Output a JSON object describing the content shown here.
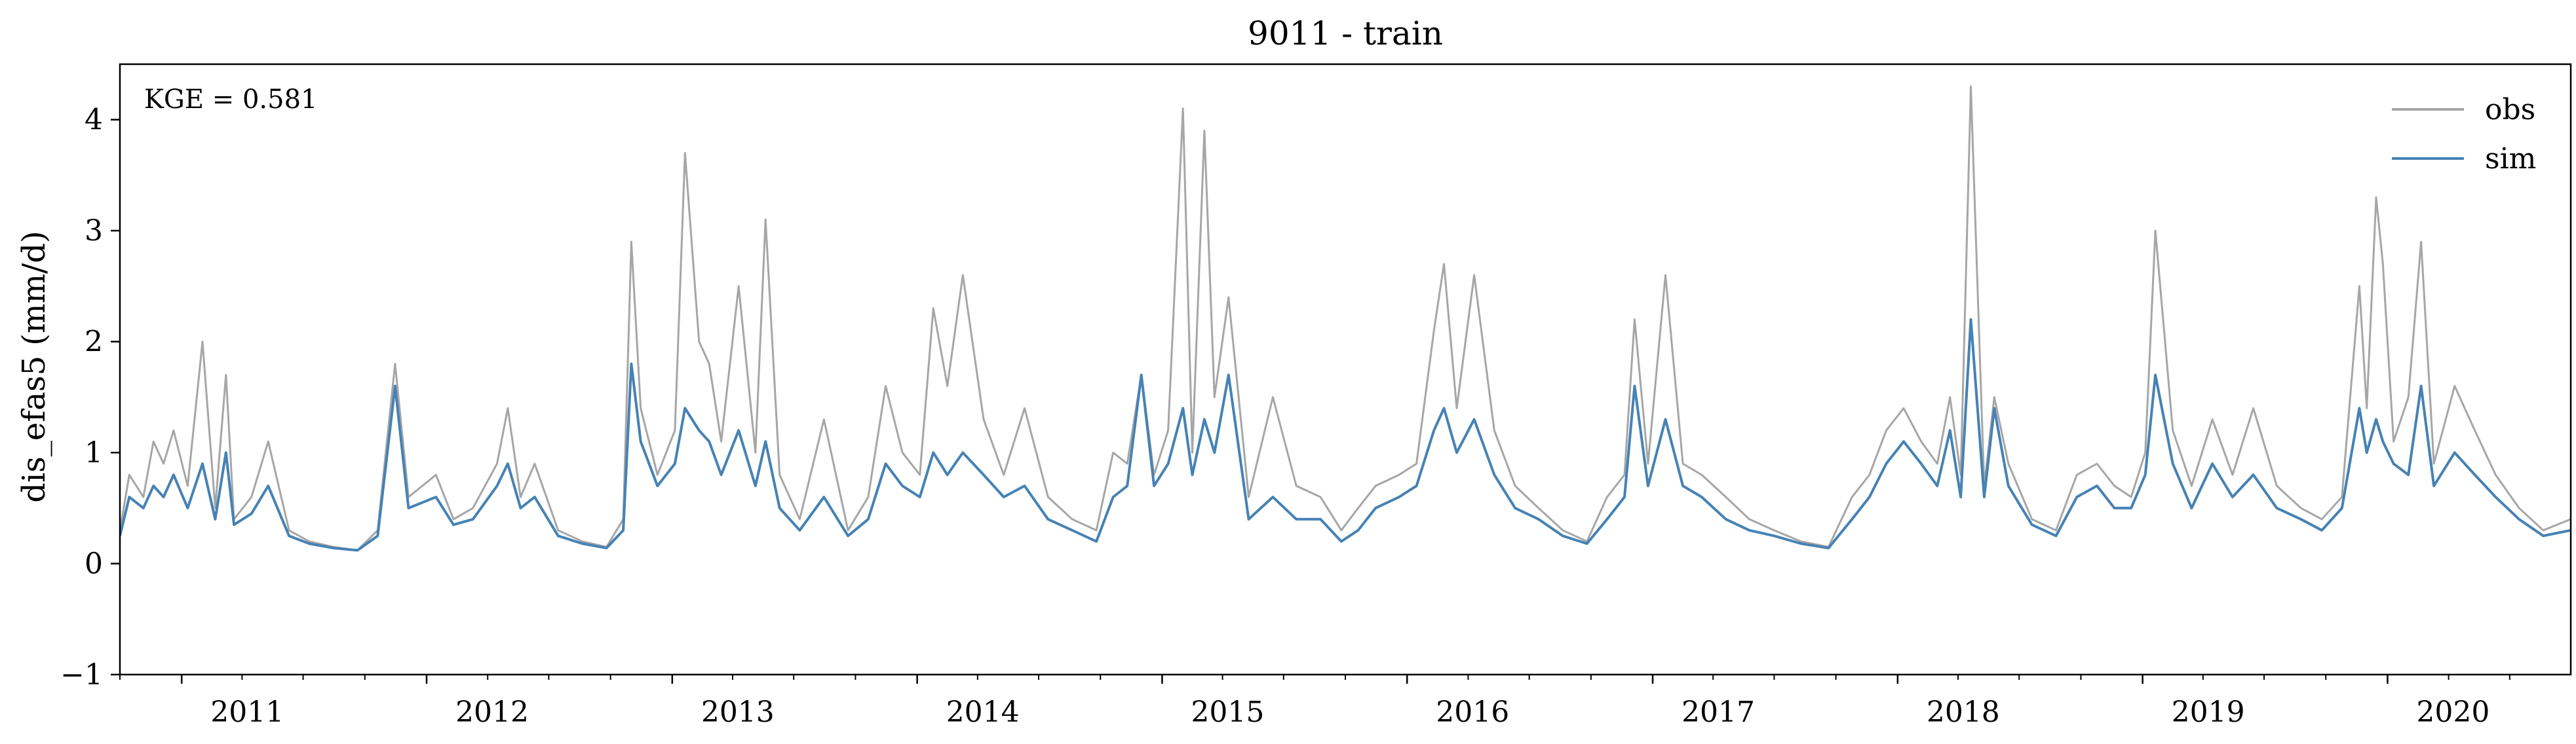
{
  "chart_data": {
    "type": "line",
    "title": "9011 - train",
    "xlabel": "",
    "ylabel": "dis_efas5 (mm/d)",
    "x_range": [
      "2010-10-01",
      "2020-09-30"
    ],
    "ylim": [
      -1,
      4.5
    ],
    "y_ticks": [
      -1,
      0,
      1,
      2,
      3,
      4
    ],
    "y_tick_labels": [
      "−1",
      "0",
      "1",
      "2",
      "3",
      "4"
    ],
    "x_ticks": [
      {
        "date": "2011-01-01",
        "label": "2011"
      },
      {
        "date": "2012-01-01",
        "label": "2012"
      },
      {
        "date": "2013-01-01",
        "label": "2013"
      },
      {
        "date": "2014-01-01",
        "label": "2014"
      },
      {
        "date": "2015-01-01",
        "label": "2015"
      },
      {
        "date": "2016-01-01",
        "label": "2016"
      },
      {
        "date": "2017-01-01",
        "label": "2017"
      },
      {
        "date": "2018-01-01",
        "label": "2018"
      },
      {
        "date": "2019-01-01",
        "label": "2019"
      },
      {
        "date": "2020-01-01",
        "label": "2020"
      }
    ],
    "annotation": "KGE = 0.581",
    "grid": false,
    "legend_position": "top-right",
    "series": [
      {
        "name": "obs",
        "color": "#a6a6a6",
        "x": [
          "2010-10-01",
          "2010-10-15",
          "2010-11-05",
          "2010-11-20",
          "2010-12-05",
          "2010-12-20",
          "2011-01-10",
          "2011-02-01",
          "2011-02-20",
          "2011-03-08",
          "2011-03-20",
          "2011-04-15",
          "2011-05-10",
          "2011-06-10",
          "2011-07-10",
          "2011-08-15",
          "2011-09-20",
          "2011-10-20",
          "2011-11-15",
          "2011-12-05",
          "2012-01-15",
          "2012-02-10",
          "2012-03-10",
          "2012-04-15",
          "2012-05-01",
          "2012-05-20",
          "2012-06-10",
          "2012-07-15",
          "2012-08-20",
          "2012-09-25",
          "2012-10-20",
          "2012-11-01",
          "2012-11-15",
          "2012-12-10",
          "2013-01-05",
          "2013-01-20",
          "2013-02-10",
          "2013-02-25",
          "2013-03-15",
          "2013-04-10",
          "2013-05-05",
          "2013-05-20",
          "2013-06-10",
          "2013-07-10",
          "2013-08-15",
          "2013-09-20",
          "2013-10-20",
          "2013-11-15",
          "2013-12-10",
          "2014-01-05",
          "2014-01-25",
          "2014-02-15",
          "2014-03-10",
          "2014-04-10",
          "2014-05-10",
          "2014-06-10",
          "2014-07-15",
          "2014-08-20",
          "2014-09-25",
          "2014-10-20",
          "2014-11-10",
          "2014-12-01",
          "2014-12-20",
          "2015-01-10",
          "2015-02-01",
          "2015-02-15",
          "2015-03-05",
          "2015-03-20",
          "2015-04-10",
          "2015-05-10",
          "2015-06-15",
          "2015-07-20",
          "2015-08-25",
          "2015-09-25",
          "2015-10-20",
          "2015-11-15",
          "2015-12-20",
          "2016-01-15",
          "2016-02-10",
          "2016-02-25",
          "2016-03-15",
          "2016-04-10",
          "2016-05-10",
          "2016-06-10",
          "2016-07-15",
          "2016-08-20",
          "2016-09-25",
          "2016-10-25",
          "2016-11-20",
          "2016-12-05",
          "2016-12-25",
          "2017-01-20",
          "2017-02-15",
          "2017-03-15",
          "2017-04-20",
          "2017-05-25",
          "2017-07-01",
          "2017-08-10",
          "2017-09-20",
          "2017-10-25",
          "2017-11-20",
          "2017-12-15",
          "2018-01-10",
          "2018-02-05",
          "2018-03-01",
          "2018-03-20",
          "2018-04-05",
          "2018-04-20",
          "2018-05-10",
          "2018-05-25",
          "2018-06-15",
          "2018-07-20",
          "2018-08-25",
          "2018-09-25",
          "2018-10-25",
          "2018-11-20",
          "2018-12-15",
          "2019-01-05",
          "2019-01-20",
          "2019-02-15",
          "2019-03-15",
          "2019-04-15",
          "2019-05-15",
          "2019-06-15",
          "2019-07-20",
          "2019-08-25",
          "2019-09-25",
          "2019-10-25",
          "2019-11-20",
          "2019-12-01",
          "2019-12-15",
          "2019-12-25",
          "2020-01-10",
          "2020-02-01",
          "2020-02-20",
          "2020-03-10",
          "2020-04-10",
          "2020-05-10",
          "2020-06-10",
          "2020-07-15",
          "2020-08-20",
          "2020-09-30"
        ],
        "values": [
          0.3,
          0.8,
          0.6,
          1.1,
          0.9,
          1.2,
          0.7,
          2.0,
          0.5,
          1.7,
          0.4,
          0.6,
          1.1,
          0.3,
          0.2,
          0.15,
          0.12,
          0.3,
          1.8,
          0.6,
          0.8,
          0.4,
          0.5,
          0.9,
          1.4,
          0.6,
          0.9,
          0.3,
          0.2,
          0.15,
          0.4,
          2.9,
          1.4,
          0.8,
          1.2,
          3.7,
          2.0,
          1.8,
          1.1,
          2.5,
          1.0,
          3.1,
          0.8,
          0.4,
          1.3,
          0.3,
          0.6,
          1.6,
          1.0,
          0.8,
          2.3,
          1.6,
          2.6,
          1.3,
          0.8,
          1.4,
          0.6,
          0.4,
          0.3,
          1.0,
          0.9,
          1.7,
          0.8,
          1.2,
          4.1,
          1.0,
          3.9,
          1.5,
          2.4,
          0.6,
          1.5,
          0.7,
          0.6,
          0.3,
          0.5,
          0.7,
          0.8,
          0.9,
          2.1,
          2.7,
          1.4,
          2.6,
          1.2,
          0.7,
          0.5,
          0.3,
          0.2,
          0.6,
          0.8,
          2.2,
          0.9,
          2.6,
          0.9,
          0.8,
          0.6,
          0.4,
          0.3,
          0.2,
          0.15,
          0.6,
          0.8,
          1.2,
          1.4,
          1.1,
          0.9,
          1.5,
          0.8,
          4.3,
          0.7,
          1.5,
          0.9,
          0.4,
          0.3,
          0.8,
          0.9,
          0.7,
          0.6,
          1.0,
          3.0,
          1.2,
          0.7,
          1.3,
          0.8,
          1.4,
          0.7,
          0.5,
          0.4,
          0.6,
          2.5,
          1.4,
          3.3,
          2.7,
          1.1,
          1.5,
          2.9,
          0.9,
          1.6,
          1.2,
          0.8,
          0.5,
          0.3,
          0.4
        ]
      },
      {
        "name": "sim",
        "color": "#4682b4",
        "x": [
          "2010-10-01",
          "2010-10-15",
          "2010-11-05",
          "2010-11-20",
          "2010-12-05",
          "2010-12-20",
          "2011-01-10",
          "2011-02-01",
          "2011-02-20",
          "2011-03-08",
          "2011-03-20",
          "2011-04-15",
          "2011-05-10",
          "2011-06-10",
          "2011-07-10",
          "2011-08-15",
          "2011-09-20",
          "2011-10-20",
          "2011-11-15",
          "2011-12-05",
          "2012-01-15",
          "2012-02-10",
          "2012-03-10",
          "2012-04-15",
          "2012-05-01",
          "2012-05-20",
          "2012-06-10",
          "2012-07-15",
          "2012-08-20",
          "2012-09-25",
          "2012-10-20",
          "2012-11-01",
          "2012-11-15",
          "2012-12-10",
          "2013-01-05",
          "2013-01-20",
          "2013-02-10",
          "2013-02-25",
          "2013-03-15",
          "2013-04-10",
          "2013-05-05",
          "2013-05-20",
          "2013-06-10",
          "2013-07-10",
          "2013-08-15",
          "2013-09-20",
          "2013-10-20",
          "2013-11-15",
          "2013-12-10",
          "2014-01-05",
          "2014-01-25",
          "2014-02-15",
          "2014-03-10",
          "2014-04-10",
          "2014-05-10",
          "2014-06-10",
          "2014-07-15",
          "2014-08-20",
          "2014-09-25",
          "2014-10-20",
          "2014-11-10",
          "2014-12-01",
          "2014-12-20",
          "2015-01-10",
          "2015-02-01",
          "2015-02-15",
          "2015-03-05",
          "2015-03-20",
          "2015-04-10",
          "2015-05-10",
          "2015-06-15",
          "2015-07-20",
          "2015-08-25",
          "2015-09-25",
          "2015-10-20",
          "2015-11-15",
          "2015-12-20",
          "2016-01-15",
          "2016-02-10",
          "2016-02-25",
          "2016-03-15",
          "2016-04-10",
          "2016-05-10",
          "2016-06-10",
          "2016-07-15",
          "2016-08-20",
          "2016-09-25",
          "2016-10-25",
          "2016-11-20",
          "2016-12-05",
          "2016-12-25",
          "2017-01-20",
          "2017-02-15",
          "2017-03-15",
          "2017-04-20",
          "2017-05-25",
          "2017-07-01",
          "2017-08-10",
          "2017-09-20",
          "2017-10-25",
          "2017-11-20",
          "2017-12-15",
          "2018-01-10",
          "2018-02-05",
          "2018-03-01",
          "2018-03-20",
          "2018-04-05",
          "2018-04-20",
          "2018-05-10",
          "2018-05-25",
          "2018-06-15",
          "2018-07-20",
          "2018-08-25",
          "2018-09-25",
          "2018-10-25",
          "2018-11-20",
          "2018-12-15",
          "2019-01-05",
          "2019-01-20",
          "2019-02-15",
          "2019-03-15",
          "2019-04-15",
          "2019-05-15",
          "2019-06-15",
          "2019-07-20",
          "2019-08-25",
          "2019-09-25",
          "2019-10-25",
          "2019-11-20",
          "2019-12-01",
          "2019-12-15",
          "2019-12-25",
          "2020-01-10",
          "2020-02-01",
          "2020-02-20",
          "2020-03-10",
          "2020-04-10",
          "2020-05-10",
          "2020-06-10",
          "2020-07-15",
          "2020-08-20",
          "2020-09-30"
        ],
        "values": [
          0.25,
          0.6,
          0.5,
          0.7,
          0.6,
          0.8,
          0.5,
          0.9,
          0.4,
          1.0,
          0.35,
          0.45,
          0.7,
          0.25,
          0.18,
          0.14,
          0.12,
          0.25,
          1.6,
          0.5,
          0.6,
          0.35,
          0.4,
          0.7,
          0.9,
          0.5,
          0.6,
          0.25,
          0.18,
          0.14,
          0.3,
          1.8,
          1.1,
          0.7,
          0.9,
          1.4,
          1.2,
          1.1,
          0.8,
          1.2,
          0.7,
          1.1,
          0.5,
          0.3,
          0.6,
          0.25,
          0.4,
          0.9,
          0.7,
          0.6,
          1.0,
          0.8,
          1.0,
          0.8,
          0.6,
          0.7,
          0.4,
          0.3,
          0.2,
          0.6,
          0.7,
          1.7,
          0.7,
          0.9,
          1.4,
          0.8,
          1.3,
          1.0,
          1.7,
          0.4,
          0.6,
          0.4,
          0.4,
          0.2,
          0.3,
          0.5,
          0.6,
          0.7,
          1.2,
          1.4,
          1.0,
          1.3,
          0.8,
          0.5,
          0.4,
          0.25,
          0.18,
          0.4,
          0.6,
          1.6,
          0.7,
          1.3,
          0.7,
          0.6,
          0.4,
          0.3,
          0.25,
          0.18,
          0.14,
          0.4,
          0.6,
          0.9,
          1.1,
          0.9,
          0.7,
          1.2,
          0.6,
          2.2,
          0.6,
          1.4,
          0.7,
          0.35,
          0.25,
          0.6,
          0.7,
          0.5,
          0.5,
          0.8,
          1.7,
          0.9,
          0.5,
          0.9,
          0.6,
          0.8,
          0.5,
          0.4,
          0.3,
          0.5,
          1.4,
          1.0,
          1.3,
          1.1,
          0.9,
          0.8,
          1.6,
          0.7,
          1.0,
          0.8,
          0.6,
          0.4,
          0.25,
          0.3
        ]
      }
    ]
  }
}
